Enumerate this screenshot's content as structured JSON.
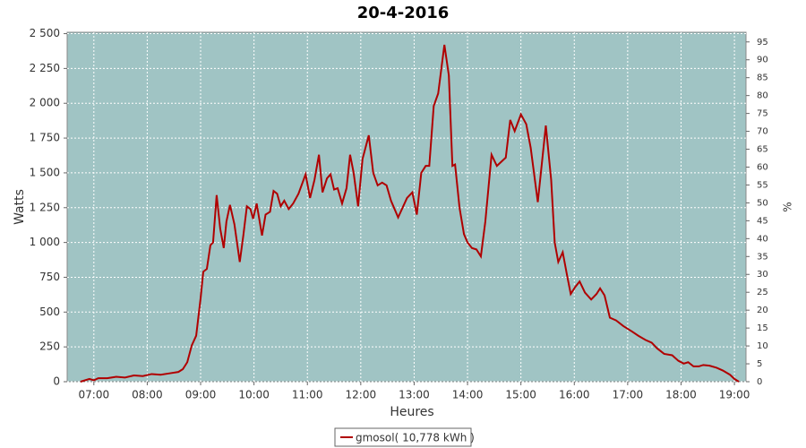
{
  "chart_data": {
    "type": "line",
    "title": "20-4-2016",
    "x_label": "Heures",
    "y_label": "Watts",
    "y2_label": "%",
    "x": [
      "06:45",
      "06:55",
      "07:00",
      "07:05",
      "07:15",
      "07:25",
      "07:35",
      "07:45",
      "07:55",
      "08:05",
      "08:15",
      "08:25",
      "08:35",
      "08:40",
      "08:45",
      "08:50",
      "08:55",
      "09:00",
      "09:03",
      "09:07",
      "09:11",
      "09:14",
      "09:18",
      "09:22",
      "09:26",
      "09:29",
      "09:33",
      "09:38",
      "09:44",
      "09:48",
      "09:52",
      "09:56",
      "09:59",
      "10:03",
      "10:09",
      "10:13",
      "10:18",
      "10:22",
      "10:26",
      "10:30",
      "10:34",
      "10:39",
      "10:44",
      "10:50",
      "10:58",
      "11:03",
      "11:08",
      "11:13",
      "11:17",
      "11:22",
      "11:26",
      "11:30",
      "11:34",
      "11:39",
      "11:44",
      "11:48",
      "11:52",
      "11:57",
      "12:02",
      "12:09",
      "12:14",
      "12:19",
      "12:24",
      "12:29",
      "12:34",
      "12:42",
      "12:47",
      "12:52",
      "12:58",
      "13:03",
      "13:08",
      "13:13",
      "13:17",
      "13:22",
      "13:27",
      "13:34",
      "13:39",
      "13:43",
      "13:46",
      "13:51",
      "13:56",
      "14:00",
      "14:05",
      "14:10",
      "14:15",
      "14:20",
      "14:27",
      "14:33",
      "14:38",
      "14:43",
      "14:48",
      "14:53",
      "15:00",
      "15:06",
      "15:11",
      "15:19",
      "15:28",
      "15:34",
      "15:38",
      "15:42",
      "15:47",
      "15:52",
      "15:56",
      "16:01",
      "16:06",
      "16:12",
      "16:19",
      "16:25",
      "16:29",
      "16:34",
      "16:40",
      "16:47",
      "16:55",
      "17:00",
      "17:05",
      "17:12",
      "17:20",
      "17:27",
      "17:33",
      "17:41",
      "17:50",
      "17:57",
      "18:03",
      "18:08",
      "18:14",
      "18:20",
      "18:25",
      "18:32",
      "18:40",
      "18:47",
      "18:55",
      "19:00",
      "19:05"
    ],
    "series": [
      {
        "name": "gmosol( 10,778 kWh )",
        "color": "#b00000",
        "values": [
          0,
          20,
          10,
          25,
          25,
          35,
          30,
          45,
          40,
          55,
          50,
          60,
          70,
          90,
          140,
          260,
          330,
          600,
          790,
          810,
          980,
          1000,
          1340,
          1100,
          960,
          1150,
          1270,
          1130,
          860,
          1050,
          1260,
          1240,
          1170,
          1280,
          1050,
          1200,
          1220,
          1370,
          1350,
          1260,
          1300,
          1240,
          1280,
          1350,
          1490,
          1320,
          1450,
          1630,
          1360,
          1460,
          1490,
          1380,
          1390,
          1280,
          1390,
          1630,
          1500,
          1260,
          1600,
          1770,
          1500,
          1410,
          1430,
          1410,
          1300,
          1180,
          1250,
          1320,
          1360,
          1200,
          1500,
          1550,
          1550,
          1980,
          2070,
          2420,
          2200,
          1550,
          1560,
          1250,
          1060,
          1000,
          960,
          950,
          900,
          1150,
          1630,
          1550,
          1580,
          1610,
          1880,
          1800,
          1920,
          1850,
          1680,
          1290,
          1840,
          1450,
          1000,
          860,
          930,
          760,
          630,
          680,
          720,
          640,
          590,
          630,
          670,
          620,
          460,
          440,
          400,
          380,
          360,
          330,
          300,
          280,
          240,
          200,
          190,
          150,
          130,
          140,
          110,
          110,
          120,
          115,
          100,
          80,
          50,
          20,
          0
        ]
      }
    ],
    "xlim": [
      "06:30",
      "19:13"
    ],
    "xticks": [
      "07:00",
      "08:00",
      "09:00",
      "10:00",
      "11:00",
      "12:00",
      "13:00",
      "14:00",
      "15:00",
      "16:00",
      "17:00",
      "18:00",
      "19:00"
    ],
    "ylim": [
      0,
      2510
    ],
    "yticks": [
      0,
      {
        "value": 250,
        "label": "250"
      },
      {
        "value": 500,
        "label": "500"
      },
      {
        "value": 750,
        "label": "750"
      },
      {
        "value": 1000,
        "label": "1 000"
      },
      {
        "value": 1250,
        "label": "1 250"
      },
      {
        "value": 1500,
        "label": "1 500"
      },
      {
        "value": 1750,
        "label": "1 750"
      },
      {
        "value": 2000,
        "label": "2 000"
      },
      {
        "value": 2250,
        "label": "2 250"
      },
      {
        "value": 2500,
        "label": "2 500"
      }
    ],
    "y2lim": [
      0,
      97.7
    ],
    "y2ticks": [
      0,
      5,
      10,
      15,
      20,
      25,
      30,
      35,
      40,
      45,
      50,
      55,
      60,
      65,
      70,
      75,
      80,
      85,
      90,
      95
    ],
    "grid": true,
    "legend": "bottom"
  }
}
